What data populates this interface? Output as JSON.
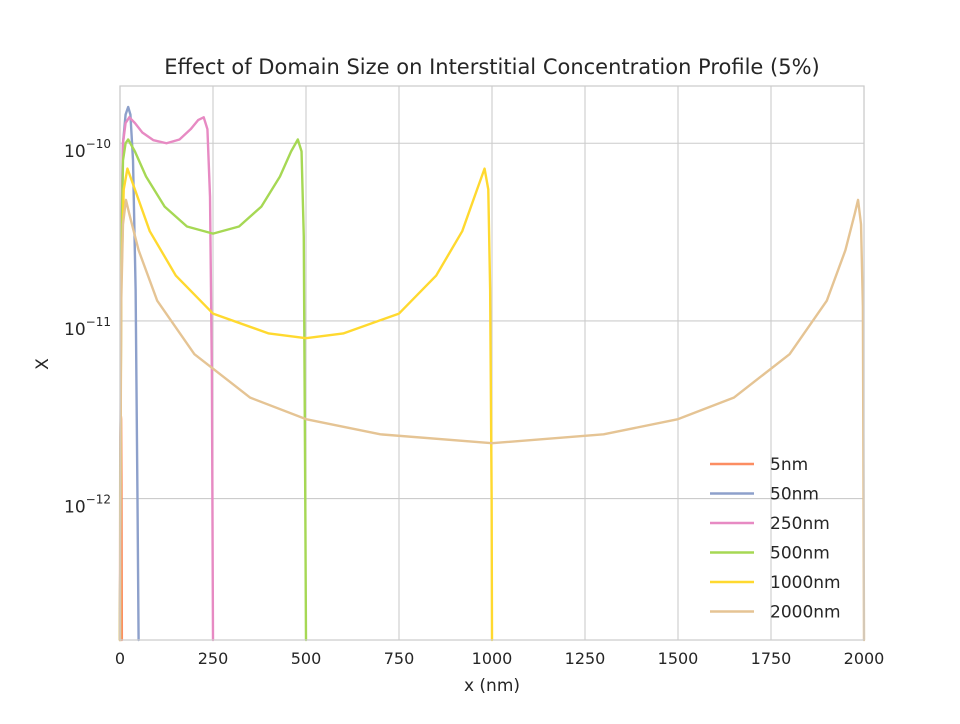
{
  "chart_data": {
    "type": "line",
    "title": "Effect of Domain Size on Interstitial Concentration Profile (5%)",
    "xlabel": "x (nm)",
    "ylabel": "X",
    "xlim": [
      0,
      2000
    ],
    "ylim": [
      1.6e-13,
      2.1e-10
    ],
    "yscale": "log",
    "grid": true,
    "legend_position": "lower-right",
    "x_ticks": [
      0,
      250,
      500,
      750,
      1000,
      1250,
      1500,
      1750,
      2000
    ],
    "x_tick_labels": [
      "0",
      "250",
      "500",
      "750",
      "1000",
      "1250",
      "1500",
      "1750",
      "2000"
    ],
    "y_ticks": [
      1e-12,
      1e-11,
      1e-10
    ],
    "y_tick_labels": [
      {
        "base": "10",
        "exp": "−12"
      },
      {
        "base": "10",
        "exp": "−11"
      },
      {
        "base": "10",
        "exp": "−10"
      }
    ],
    "series": [
      {
        "name": "5nm",
        "color": "#fc8d62",
        "x": [
          0,
          0.5,
          1,
          2,
          2.5,
          3,
          4,
          5
        ],
        "y": [
          1.6e-13,
          1.5e-12,
          2.2e-12,
          2.8e-12,
          2.9e-12,
          2.8e-12,
          1.2e-12,
          1.6e-13
        ]
      },
      {
        "name": "50nm",
        "color": "#8da0cb",
        "x": [
          0,
          3,
          8,
          15,
          22,
          28,
          35,
          42,
          47,
          50
        ],
        "y": [
          1.6e-13,
          2e-11,
          1e-10,
          1.45e-10,
          1.6e-10,
          1.45e-10,
          8e-11,
          1.5e-11,
          1e-12,
          1.6e-13
        ]
      },
      {
        "name": "250nm",
        "color": "#e78ac3",
        "x": [
          0,
          3,
          8,
          15,
          25,
          40,
          60,
          90,
          125,
          160,
          190,
          210,
          225,
          235,
          242,
          247,
          250
        ],
        "y": [
          1.6e-13,
          2.5e-11,
          1e-10,
          1.3e-10,
          1.4e-10,
          1.3e-10,
          1.15e-10,
          1.04e-10,
          1e-10,
          1.05e-10,
          1.2e-10,
          1.35e-10,
          1.4e-10,
          1.2e-10,
          5e-11,
          5e-12,
          1.6e-13
        ]
      },
      {
        "name": "500nm",
        "color": "#a6d854",
        "x": [
          0,
          3,
          8,
          15,
          22,
          40,
          70,
          120,
          180,
          250,
          320,
          380,
          430,
          460,
          478,
          488,
          494,
          498,
          500
        ],
        "y": [
          1.6e-13,
          2e-11,
          8e-11,
          1e-10,
          1.05e-10,
          9e-11,
          6.5e-11,
          4.4e-11,
          3.4e-11,
          3.1e-11,
          3.4e-11,
          4.4e-11,
          6.5e-11,
          9e-11,
          1.05e-10,
          9e-11,
          3e-11,
          1e-12,
          1.6e-13
        ]
      },
      {
        "name": "1000nm",
        "color": "#ffd92f",
        "x": [
          0,
          3,
          10,
          20,
          40,
          80,
          150,
          250,
          400,
          500,
          600,
          750,
          850,
          920,
          960,
          980,
          990,
          995,
          999,
          1000
        ],
        "y": [
          1.6e-13,
          1.5e-11,
          5.5e-11,
          7.2e-11,
          5.5e-11,
          3.2e-11,
          1.8e-11,
          1.1e-11,
          8.5e-12,
          8e-12,
          8.5e-12,
          1.1e-11,
          1.8e-11,
          3.2e-11,
          5.5e-11,
          7.2e-11,
          5.5e-11,
          1.5e-11,
          1e-12,
          1.6e-13
        ]
      },
      {
        "name": "2000nm",
        "color": "#e5c494",
        "x": [
          0,
          3,
          8,
          16,
          25,
          50,
          100,
          200,
          350,
          500,
          700,
          1000,
          1300,
          1500,
          1650,
          1800,
          1900,
          1950,
          1975,
          1984,
          1992,
          1997,
          2000
        ],
        "y": [
          1.6e-13,
          1.2e-11,
          3.5e-11,
          4.8e-11,
          4e-11,
          2.5e-11,
          1.3e-11,
          6.5e-12,
          3.7e-12,
          2.8e-12,
          2.3e-12,
          2.05e-12,
          2.3e-12,
          2.8e-12,
          3.7e-12,
          6.5e-12,
          1.3e-11,
          2.5e-11,
          4e-11,
          4.8e-11,
          3.5e-11,
          1.2e-11,
          1.6e-13
        ]
      }
    ]
  }
}
